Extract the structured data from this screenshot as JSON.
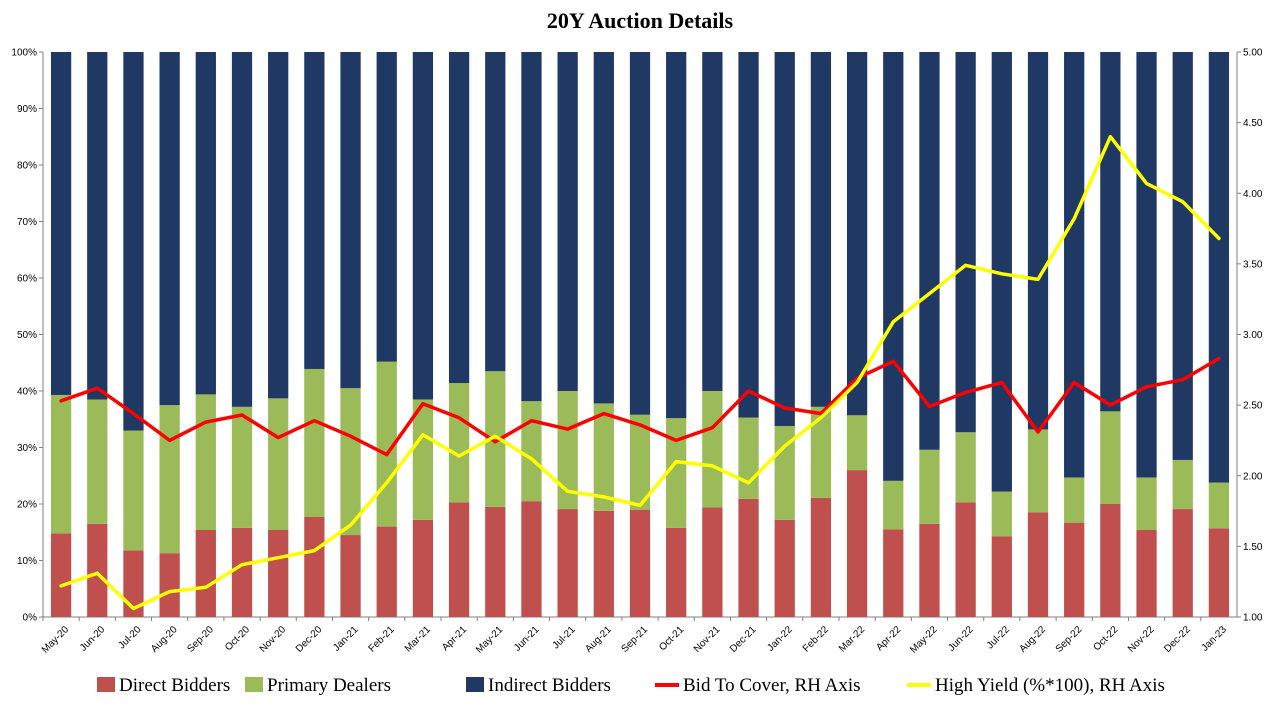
{
  "chart_data": {
    "type": "bar",
    "stacked": true,
    "title": "20Y Auction Details",
    "categories": [
      "May-20",
      "Jun-20",
      "Jul-20",
      "Aug-20",
      "Sep-20",
      "Oct-20",
      "Nov-20",
      "Dec-20",
      "Jan-21",
      "Feb-21",
      "Mar-21",
      "Apr-21",
      "May-21",
      "Jun-21",
      "Jul-21",
      "Aug-21",
      "Sep-21",
      "Oct-21",
      "Nov-21",
      "Dec-21",
      "Jan-22",
      "Feb-22",
      "Mar-22",
      "Apr-22",
      "May-22",
      "Jun-22",
      "Jul-22",
      "Aug-22",
      "Sep-22",
      "Oct-22",
      "Nov-22",
      "Dec-22",
      "Jan-23"
    ],
    "left_axis": {
      "ylim": [
        0,
        100
      ],
      "ticks": [
        "0%",
        "10%",
        "20%",
        "30%",
        "40%",
        "50%",
        "60%",
        "70%",
        "80%",
        "90%",
        "100%"
      ]
    },
    "right_axis": {
      "ylim": [
        1.0,
        5.0
      ],
      "ticks": [
        "1.00",
        "1.50",
        "2.00",
        "2.50",
        "3.00",
        "3.50",
        "4.00",
        "4.50",
        "5.00"
      ]
    },
    "series": [
      {
        "name": "Direct Bidders",
        "type": "bar",
        "axis": "left",
        "color": "#c0504d",
        "values": [
          14.8,
          16.5,
          11.8,
          11.3,
          15.4,
          15.8,
          15.4,
          17.7,
          14.5,
          16.0,
          17.2,
          20.3,
          19.5,
          20.5,
          19.1,
          18.8,
          19.0,
          15.8,
          19.4,
          20.9,
          17.2,
          21.1,
          26.0,
          15.5,
          16.5,
          20.3,
          14.3,
          18.5,
          16.7,
          20.0,
          15.4,
          19.1,
          15.7
        ]
      },
      {
        "name": "Primary Dealers",
        "type": "bar",
        "axis": "left",
        "color": "#9bbb59",
        "values": [
          24.5,
          22.0,
          21.2,
          26.2,
          24.0,
          21.4,
          23.3,
          26.2,
          26.0,
          29.2,
          21.3,
          21.1,
          24.0,
          17.7,
          20.9,
          19.0,
          16.8,
          19.4,
          20.6,
          14.4,
          16.6,
          16.1,
          9.7,
          8.6,
          13.1,
          12.4,
          7.9,
          14.7,
          8.0,
          16.4,
          9.3,
          8.7,
          8.1
        ]
      },
      {
        "name": "Indirect Bidders",
        "type": "bar",
        "axis": "left",
        "color": "#1f3864",
        "values": [
          60.7,
          61.5,
          67.0,
          62.5,
          60.6,
          62.8,
          61.3,
          56.1,
          59.5,
          54.8,
          61.5,
          58.6,
          56.5,
          61.8,
          60.0,
          62.2,
          64.2,
          64.8,
          60.0,
          64.7,
          66.2,
          62.8,
          64.3,
          75.9,
          70.4,
          67.3,
          77.8,
          66.8,
          75.3,
          63.6,
          75.3,
          72.2,
          76.2
        ]
      },
      {
        "name": "Bid To Cover, RH Axis",
        "type": "line",
        "axis": "right",
        "color": "#ff0000",
        "values": [
          2.53,
          2.62,
          2.44,
          2.25,
          2.38,
          2.43,
          2.27,
          2.39,
          2.28,
          2.15,
          2.51,
          2.41,
          2.24,
          2.39,
          2.33,
          2.44,
          2.36,
          2.25,
          2.34,
          2.6,
          2.48,
          2.44,
          2.69,
          2.81,
          2.49,
          2.59,
          2.66,
          2.31,
          2.66,
          2.5,
          2.63,
          2.68,
          2.83
        ]
      },
      {
        "name": "High Yield (%*100), RH Axis",
        "type": "line",
        "axis": "right",
        "color": "#ffff00",
        "values": [
          1.22,
          1.31,
          1.06,
          1.18,
          1.21,
          1.37,
          1.42,
          1.47,
          1.65,
          1.95,
          2.29,
          2.14,
          2.28,
          2.12,
          1.89,
          1.85,
          1.79,
          2.1,
          2.07,
          1.95,
          2.21,
          2.41,
          2.66,
          3.09,
          3.29,
          3.49,
          3.43,
          3.39,
          3.82,
          4.4,
          4.07,
          3.94,
          3.68
        ]
      }
    ],
    "grid": false,
    "legend_position": "bottom"
  }
}
